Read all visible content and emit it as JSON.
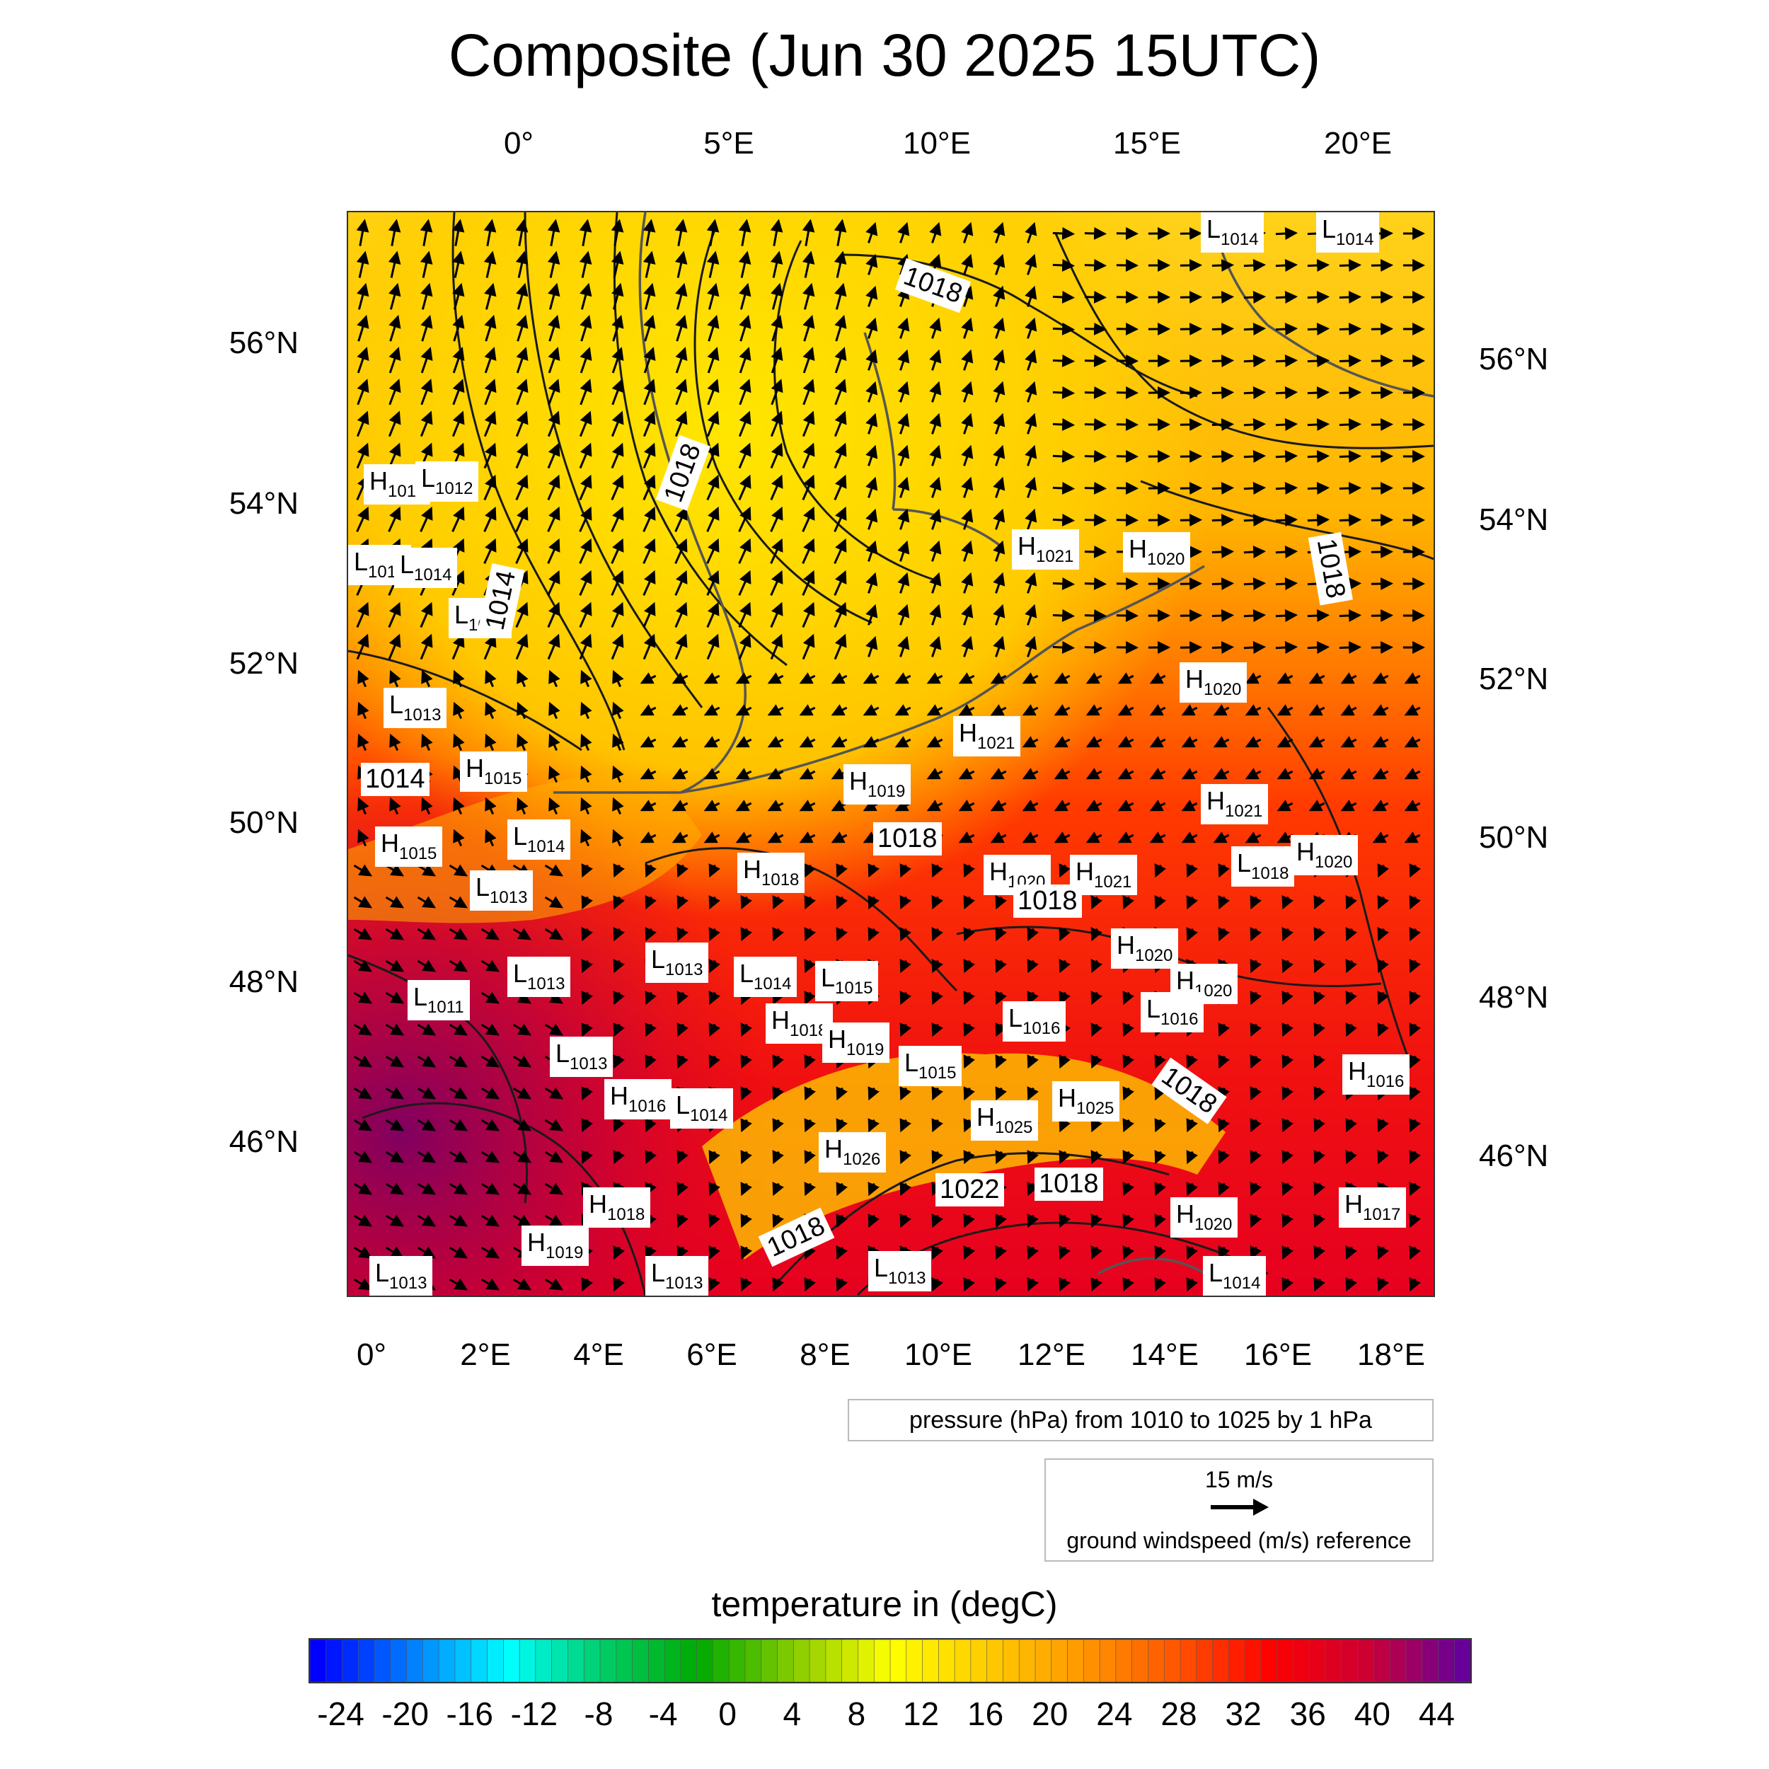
{
  "title": "Composite (Jun 30 2025 15UTC)",
  "top_lon_labels": [
    "0°",
    "5°E",
    "10°E",
    "15°E",
    "20°E"
  ],
  "bottom_lon_labels": [
    "0°",
    "2°E",
    "4°E",
    "6°E",
    "8°E",
    "10°E",
    "12°E",
    "14°E",
    "16°E",
    "18°E"
  ],
  "left_lat_labels": [
    "56°N",
    "54°N",
    "52°N",
    "50°N",
    "48°N",
    "46°N"
  ],
  "right_lat_labels": [
    "56°N",
    "54°N",
    "52°N",
    "50°N",
    "48°N",
    "46°N"
  ],
  "pressure_note": "pressure (hPa) from 1010 to 1025 by 1 hPa",
  "wind_reference": {
    "speed": "15 m/s",
    "label": "ground windspeed (m/s) reference"
  },
  "colorbar": {
    "title": "temperature in (degC)",
    "ticks": [
      "-24",
      "-20",
      "-16",
      "-12",
      "-8",
      "-4",
      "0",
      "4",
      "8",
      "12",
      "16",
      "20",
      "24",
      "28",
      "32",
      "36",
      "40",
      "44"
    ],
    "min": -26,
    "max": 46,
    "step": 1,
    "colors": [
      "#0000ff",
      "#0080ff",
      "#00ffff",
      "#00cc66",
      "#00aa00",
      "#88cc00",
      "#ffff00",
      "#ffcc00",
      "#ff9900",
      "#ff5500",
      "#ff0000",
      "#cc0033",
      "#660099"
    ]
  },
  "pressure_centers": [
    {
      "type": "H",
      "value": "1011"
    },
    {
      "type": "L",
      "value": "1012"
    },
    {
      "type": "L",
      "value": "1013"
    },
    {
      "type": "L",
      "value": "1014"
    },
    {
      "type": "L",
      "value": "1013"
    },
    {
      "type": "L",
      "value": "1013"
    },
    {
      "type": "H",
      "value": "1015"
    },
    {
      "type": "H",
      "value": "1015"
    },
    {
      "type": "L",
      "value": "1014"
    },
    {
      "type": "L",
      "value": "1013"
    },
    {
      "type": "L",
      "value": "1011"
    },
    {
      "type": "L",
      "value": "1013"
    },
    {
      "type": "L",
      "value": "1013"
    },
    {
      "type": "L",
      "value": "1013"
    },
    {
      "type": "L",
      "value": "1014"
    },
    {
      "type": "L",
      "value": "1015"
    },
    {
      "type": "H",
      "value": "1018"
    },
    {
      "type": "H",
      "value": "1019"
    },
    {
      "type": "L",
      "value": "1015"
    },
    {
      "type": "H",
      "value": "1016"
    },
    {
      "type": "L",
      "value": "1014"
    },
    {
      "type": "H",
      "value": "1018"
    },
    {
      "type": "H",
      "value": "1019"
    },
    {
      "type": "L",
      "value": "1013"
    },
    {
      "type": "L",
      "value": "1013"
    },
    {
      "type": "H",
      "value": "1026"
    },
    {
      "type": "L",
      "value": "1013"
    },
    {
      "type": "H",
      "value": "1025"
    },
    {
      "type": "H",
      "value": "1025"
    },
    {
      "type": "H",
      "value": "1018"
    },
    {
      "type": "H",
      "value": "1019"
    },
    {
      "type": "H",
      "value": "1020"
    },
    {
      "type": "H",
      "value": "1021"
    },
    {
      "type": "H",
      "value": "1021"
    },
    {
      "type": "H",
      "value": "1021"
    },
    {
      "type": "H",
      "value": "1020"
    },
    {
      "type": "H",
      "value": "1020"
    },
    {
      "type": "H",
      "value": "1021"
    },
    {
      "type": "L",
      "value": "1018"
    },
    {
      "type": "H",
      "value": "1020"
    },
    {
      "type": "H",
      "value": "1020"
    },
    {
      "type": "H",
      "value": "1020"
    },
    {
      "type": "L",
      "value": "1016"
    },
    {
      "type": "L",
      "value": "1016"
    },
    {
      "type": "H",
      "value": "1016"
    },
    {
      "type": "H",
      "value": "1017"
    },
    {
      "type": "H",
      "value": "1020"
    },
    {
      "type": "L",
      "value": "1014"
    },
    {
      "type": "L",
      "value": "1014"
    },
    {
      "type": "L",
      "value": "1014"
    },
    {
      "type": "H",
      "value": "1021"
    }
  ],
  "isobar_labels": [
    "1014",
    "1018",
    "1018",
    "1018",
    "1014",
    "1018",
    "1018",
    "1018",
    "1018",
    "1022",
    "1018"
  ]
}
